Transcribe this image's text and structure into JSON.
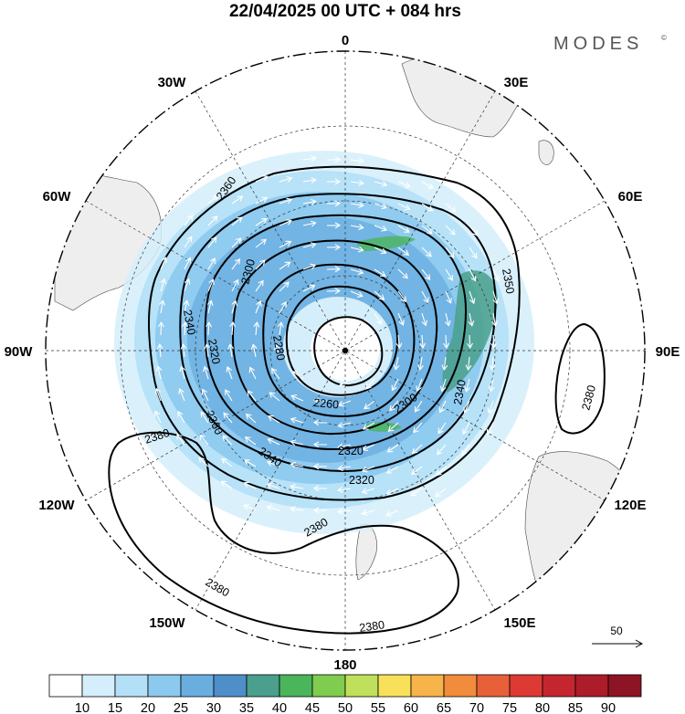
{
  "header": {
    "title": "22/04/2025  00 UTC  + 084 hrs",
    "brand": "MODES",
    "brand_mark": "©"
  },
  "map": {
    "projection": "polar stereographic (south pole)",
    "longitude_labels": {
      "top": "0",
      "upper_left": "30W",
      "upper_right": "30E",
      "left_high": "60W",
      "right_high": "60E",
      "left": "90W",
      "right": "90E",
      "left_low": "120W",
      "right_low": "120E",
      "lower_left": "150W",
      "lower_right": "150E",
      "bottom": "180"
    },
    "contour_labels": [
      "2360",
      "2340",
      "2320",
      "2300",
      "2280",
      "2260",
      "2300",
      "2320",
      "2340",
      "2360",
      "2380",
      "2380",
      "2380",
      "2380",
      "2340",
      "2350",
      "2320",
      "2380"
    ],
    "vector_scale_label": "50",
    "colors": {
      "land": "#f0f0f0",
      "contour": "#000000",
      "arrow": "#ffffff"
    }
  },
  "colorbar": {
    "ticks": [
      "10",
      "15",
      "20",
      "25",
      "30",
      "35",
      "40",
      "45",
      "50",
      "55",
      "60",
      "65",
      "70",
      "75",
      "80",
      "85",
      "90"
    ],
    "colors": [
      "#ffffff",
      "#d4eefb",
      "#b3e0f7",
      "#8cc9ee",
      "#6aaee0",
      "#4f8fc9",
      "#4aa08c",
      "#4ab55a",
      "#7fcc4f",
      "#bfe05a",
      "#f7e05a",
      "#f7b44a",
      "#f08c3c",
      "#e8603a",
      "#dc3a32",
      "#c42630",
      "#ac1c2a",
      "#8c1424"
    ]
  }
}
